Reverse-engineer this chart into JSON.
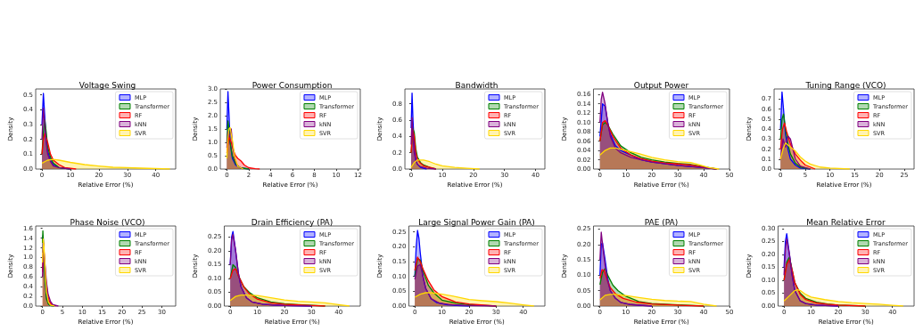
{
  "chart_data": [
    {
      "type": "area",
      "title": "Voltage Swing",
      "xlabel": "Relative Error (%)",
      "ylabel": "Density",
      "legend": "top right",
      "grid": false,
      "marker": "none",
      "xlim": [
        -2.2,
        47
      ],
      "xticks": [
        0,
        10,
        20,
        30,
        40
      ],
      "ylim": [
        0,
        0.54
      ],
      "yticks": [
        {
          "value": 0,
          "label": "0.0"
        },
        {
          "value": 0.1,
          "label": "0.1"
        },
        {
          "value": 0.2,
          "label": "0.2"
        },
        {
          "value": 0.3,
          "label": "0.3"
        },
        {
          "value": 0.4,
          "label": "0.4"
        },
        {
          "value": 0.5,
          "label": "0.5"
        }
      ],
      "series": [
        {
          "name": "MLP",
          "color": "#0000ff",
          "x": [
            0,
            0.5,
            1,
            1.5,
            2,
            3,
            4,
            6,
            10
          ],
          "values": [
            0.3,
            0.51,
            0.35,
            0.2,
            0.12,
            0.06,
            0.03,
            0.01,
            0
          ]
        },
        {
          "name": "Transformer",
          "color": "#008000",
          "x": [
            0,
            0.5,
            1,
            1.5,
            2,
            3,
            4,
            6,
            10
          ],
          "values": [
            0.1,
            0.25,
            0.33,
            0.25,
            0.15,
            0.08,
            0.04,
            0.01,
            0
          ]
        },
        {
          "name": "RF",
          "color": "#ff0000",
          "x": [
            0,
            0.5,
            1,
            2,
            3,
            4,
            6,
            8,
            12
          ],
          "values": [
            0.1,
            0.2,
            0.24,
            0.18,
            0.1,
            0.06,
            0.03,
            0.01,
            0
          ]
        },
        {
          "name": "kNN",
          "color": "#800080",
          "x": [
            0,
            0.5,
            1,
            1.5,
            2,
            3,
            4,
            6,
            10
          ],
          "values": [
            0.2,
            0.41,
            0.3,
            0.18,
            0.1,
            0.05,
            0.02,
            0.01,
            0
          ]
        },
        {
          "name": "SVR",
          "color": "#ffd700",
          "x": [
            0,
            2,
            4,
            6,
            10,
            15,
            20,
            25,
            30,
            35,
            40,
            45
          ],
          "values": [
            0.04,
            0.06,
            0.065,
            0.06,
            0.045,
            0.03,
            0.02,
            0.012,
            0.01,
            0.006,
            0.003,
            0
          ]
        }
      ]
    },
    {
      "type": "area",
      "title": "Power Consumption",
      "xlabel": "Relative Error (%)",
      "ylabel": "Density",
      "legend": "top right",
      "grid": false,
      "marker": "none",
      "xlim": [
        -0.6,
        12.2
      ],
      "xticks": [
        0,
        2,
        4,
        6,
        8,
        10,
        12
      ],
      "ylim": [
        0,
        3.0
      ],
      "yticks": [
        {
          "value": 0,
          "label": "0.0"
        },
        {
          "value": 0.5,
          "label": "0.5"
        },
        {
          "value": 1,
          "label": "1.0"
        },
        {
          "value": 1.5,
          "label": "1.5"
        },
        {
          "value": 2,
          "label": "2.0"
        },
        {
          "value": 2.5,
          "label": "2.5"
        },
        {
          "value": 3,
          "label": "3.0"
        }
      ],
      "series": [
        {
          "name": "MLP",
          "color": "#0000ff",
          "x": [
            0,
            0.1,
            0.2,
            0.3,
            0.5,
            0.8,
            1.2,
            2
          ],
          "values": [
            1.5,
            2.9,
            2.0,
            1.0,
            0.4,
            0.15,
            0.05,
            0
          ]
        },
        {
          "name": "Transformer",
          "color": "#008000",
          "x": [
            0,
            0.1,
            0.2,
            0.3,
            0.5,
            0.8,
            1.2,
            2
          ],
          "values": [
            1.0,
            1.8,
            1.5,
            1.0,
            0.5,
            0.2,
            0.05,
            0
          ]
        },
        {
          "name": "RF",
          "color": "#ff0000",
          "x": [
            0,
            0.2,
            0.4,
            0.6,
            0.8,
            1.0,
            1.3,
            1.6,
            2,
            2.6,
            3
          ],
          "values": [
            0.6,
            1.2,
            1.0,
            0.7,
            0.5,
            0.4,
            0.3,
            0.15,
            0.05,
            0.01,
            0
          ]
        },
        {
          "name": "kNN",
          "color": "#800080",
          "x": [
            0,
            0.1,
            0.2,
            0.3,
            0.4,
            0.5,
            0.7,
            1,
            1.5
          ],
          "values": [
            0.8,
            1.4,
            1.2,
            1.3,
            1.5,
            1.0,
            0.4,
            0.1,
            0
          ]
        },
        {
          "name": "SVR",
          "color": "#ffd700",
          "x": [
            0,
            0.1,
            0.2,
            0.3,
            0.4,
            0.5,
            0.7,
            1,
            1.5
          ],
          "values": [
            0.4,
            1.2,
            1.5,
            1.55,
            1.3,
            1.1,
            0.5,
            0.1,
            0
          ]
        }
      ]
    },
    {
      "type": "area",
      "title": "Bandwidth",
      "xlabel": "Relative Error (%)",
      "ylabel": "Density",
      "legend": "top right",
      "grid": false,
      "marker": "none",
      "xlim": [
        -2,
        43
      ],
      "xticks": [
        0,
        10,
        20,
        30,
        40
      ],
      "ylim": [
        0,
        0.98
      ],
      "yticks": [
        {
          "value": 0,
          "label": "0.0"
        },
        {
          "value": 0.2,
          "label": "0.2"
        },
        {
          "value": 0.4,
          "label": "0.4"
        },
        {
          "value": 0.6,
          "label": "0.6"
        },
        {
          "value": 0.8,
          "label": "0.8"
        }
      ],
      "series": [
        {
          "name": "MLP",
          "color": "#0000ff",
          "x": [
            0,
            0.3,
            0.6,
            1,
            1.5,
            2,
            3,
            5
          ],
          "values": [
            0.5,
            0.93,
            0.6,
            0.3,
            0.12,
            0.06,
            0.02,
            0
          ]
        },
        {
          "name": "Transformer",
          "color": "#008000",
          "x": [
            0,
            0.5,
            1,
            1.5,
            2,
            3,
            4,
            6,
            8
          ],
          "values": [
            0.2,
            0.5,
            0.45,
            0.25,
            0.15,
            0.08,
            0.05,
            0.02,
            0
          ]
        },
        {
          "name": "RF",
          "color": "#ff0000",
          "x": [
            0,
            0.5,
            1,
            1.5,
            2,
            3,
            4,
            6,
            8
          ],
          "values": [
            0.2,
            0.48,
            0.4,
            0.2,
            0.12,
            0.07,
            0.04,
            0.02,
            0
          ]
        },
        {
          "name": "kNN",
          "color": "#800080",
          "x": [
            0,
            0.3,
            0.6,
            1,
            1.5,
            2,
            3,
            5,
            8
          ],
          "values": [
            0.3,
            0.63,
            0.4,
            0.2,
            0.1,
            0.06,
            0.03,
            0.01,
            0
          ]
        },
        {
          "name": "SVR",
          "color": "#ffd700",
          "x": [
            0,
            1,
            2,
            4,
            6,
            8,
            10,
            14,
            18,
            22
          ],
          "values": [
            0.02,
            0.08,
            0.11,
            0.11,
            0.09,
            0.06,
            0.04,
            0.02,
            0.01,
            0
          ]
        }
      ]
    },
    {
      "type": "area",
      "title": "Output Power",
      "xlabel": "Relative Error (%)",
      "ylabel": "Density",
      "legend": "top right",
      "grid": false,
      "marker": "none",
      "xlim": [
        -2.5,
        50
      ],
      "xticks": [
        0,
        10,
        20,
        30,
        40,
        50
      ],
      "ylim": [
        0,
        0.172
      ],
      "yticks": [
        {
          "value": 0,
          "label": "0.00"
        },
        {
          "value": 0.02,
          "label": "0.02"
        },
        {
          "value": 0.04,
          "label": "0.04"
        },
        {
          "value": 0.06,
          "label": "0.06"
        },
        {
          "value": 0.08,
          "label": "0.08"
        },
        {
          "value": 0.1,
          "label": "0.10"
        },
        {
          "value": 0.12,
          "label": "0.12"
        },
        {
          "value": 0.14,
          "label": "0.14"
        },
        {
          "value": 0.16,
          "label": "0.16"
        }
      ],
      "series": [
        {
          "name": "MLP",
          "color": "#0000ff",
          "x": [
            0,
            1,
            2,
            3,
            4,
            6,
            8,
            12,
            16,
            20,
            30,
            40,
            45
          ],
          "values": [
            0.07,
            0.14,
            0.135,
            0.1,
            0.075,
            0.05,
            0.04,
            0.03,
            0.02,
            0.015,
            0.008,
            0.003,
            0
          ]
        },
        {
          "name": "Transformer",
          "color": "#008000",
          "x": [
            0,
            1,
            2,
            3,
            5,
            8,
            12,
            16,
            20,
            25,
            30,
            35,
            40,
            45
          ],
          "values": [
            0.06,
            0.095,
            0.1,
            0.095,
            0.075,
            0.05,
            0.035,
            0.025,
            0.02,
            0.015,
            0.012,
            0.01,
            0.005,
            0
          ]
        },
        {
          "name": "RF",
          "color": "#ff0000",
          "x": [
            0,
            1,
            2,
            3,
            5,
            8,
            12,
            16,
            20,
            25,
            30,
            35,
            40,
            45
          ],
          "values": [
            0.06,
            0.1,
            0.104,
            0.095,
            0.07,
            0.045,
            0.03,
            0.022,
            0.017,
            0.013,
            0.011,
            0.009,
            0.004,
            0
          ]
        },
        {
          "name": "kNN",
          "color": "#800080",
          "x": [
            0,
            0.5,
            1,
            2,
            3,
            4,
            6,
            8,
            12,
            16,
            20,
            30,
            40,
            45
          ],
          "values": [
            0.1,
            0.15,
            0.165,
            0.14,
            0.1,
            0.07,
            0.045,
            0.035,
            0.025,
            0.02,
            0.015,
            0.008,
            0.003,
            0
          ]
        },
        {
          "name": "SVR",
          "color": "#ffd700",
          "x": [
            0,
            2,
            4,
            6,
            10,
            15,
            20,
            25,
            30,
            35,
            38,
            42,
            46
          ],
          "values": [
            0.03,
            0.04,
            0.045,
            0.045,
            0.04,
            0.033,
            0.025,
            0.02,
            0.016,
            0.014,
            0.01,
            0.003,
            0
          ]
        }
      ]
    },
    {
      "type": "area",
      "title": "Tuning Range (VCO)",
      "xlabel": "Relative Error (%)",
      "ylabel": "Density",
      "legend": "top right",
      "grid": false,
      "marker": "none",
      "xlim": [
        -1.3,
        27
      ],
      "xticks": [
        0,
        5,
        10,
        15,
        20,
        25
      ],
      "ylim": [
        0,
        0.8
      ],
      "yticks": [
        {
          "value": 0,
          "label": "0.0"
        },
        {
          "value": 0.1,
          "label": "0.1"
        },
        {
          "value": 0.2,
          "label": "0.2"
        },
        {
          "value": 0.3,
          "label": "0.3"
        },
        {
          "value": 0.4,
          "label": "0.4"
        },
        {
          "value": 0.5,
          "label": "0.5"
        },
        {
          "value": 0.6,
          "label": "0.6"
        },
        {
          "value": 0.7,
          "label": "0.7"
        }
      ],
      "series": [
        {
          "name": "MLP",
          "color": "#0000ff",
          "x": [
            0,
            0.3,
            0.6,
            1,
            1.5,
            2,
            3,
            4,
            6
          ],
          "values": [
            0.4,
            0.77,
            0.6,
            0.35,
            0.2,
            0.1,
            0.04,
            0.01,
            0
          ]
        },
        {
          "name": "Transformer",
          "color": "#008000",
          "x": [
            0,
            0.3,
            0.6,
            1,
            1.5,
            2,
            3,
            4,
            6
          ],
          "values": [
            0.3,
            0.5,
            0.55,
            0.4,
            0.25,
            0.15,
            0.06,
            0.02,
            0
          ]
        },
        {
          "name": "RF",
          "color": "#ff0000",
          "x": [
            0,
            0.4,
            0.8,
            1.2,
            2,
            3,
            4,
            5,
            7
          ],
          "values": [
            0.2,
            0.4,
            0.46,
            0.38,
            0.25,
            0.15,
            0.09,
            0.04,
            0
          ]
        },
        {
          "name": "kNN",
          "color": "#800080",
          "x": [
            0,
            0.5,
            1,
            1.5,
            2,
            2.5,
            3,
            4,
            6
          ],
          "values": [
            0.1,
            0.3,
            0.22,
            0.33,
            0.3,
            0.2,
            0.1,
            0.03,
            0
          ]
        },
        {
          "name": "SVR",
          "color": "#ffd700",
          "x": [
            0,
            0.5,
            1,
            2,
            3,
            4,
            5,
            6,
            8,
            10,
            14
          ],
          "values": [
            0.1,
            0.2,
            0.26,
            0.22,
            0.18,
            0.12,
            0.08,
            0.05,
            0.02,
            0.01,
            0
          ]
        }
      ]
    },
    {
      "type": "area",
      "title": "Phase Noise (VCO)",
      "xlabel": "Relative Error (%)",
      "ylabel": "Density",
      "legend": "top right",
      "grid": false,
      "marker": "none",
      "xlim": [
        -1.7,
        33.5
      ],
      "xticks": [
        0,
        5,
        10,
        15,
        20,
        25,
        30
      ],
      "ylim": [
        0,
        1.65
      ],
      "yticks": [
        {
          "value": 0,
          "label": "0.0"
        },
        {
          "value": 0.2,
          "label": "0.2"
        },
        {
          "value": 0.4,
          "label": "0.4"
        },
        {
          "value": 0.6,
          "label": "0.6"
        },
        {
          "value": 0.8,
          "label": "0.8"
        },
        {
          "value": 1,
          "label": "1.0"
        },
        {
          "value": 1.2,
          "label": "1.2"
        },
        {
          "value": 1.4,
          "label": "1.4"
        },
        {
          "value": 1.6,
          "label": "1.6"
        }
      ],
      "series": [
        {
          "name": "MLP",
          "color": "#0000ff",
          "x": [
            0,
            0.15,
            0.4,
            0.7,
            1,
            1.5,
            2,
            3
          ],
          "values": [
            1.1,
            1.45,
            1.0,
            0.5,
            0.2,
            0.05,
            0.01,
            0
          ]
        },
        {
          "name": "Transformer",
          "color": "#008000",
          "x": [
            0,
            0.1,
            0.3,
            0.6,
            1,
            1.5,
            2,
            3
          ],
          "values": [
            1.3,
            1.55,
            1.2,
            0.6,
            0.15,
            0.04,
            0.01,
            0
          ]
        },
        {
          "name": "RF",
          "color": "#ff0000",
          "x": [
            0,
            0.25,
            0.5,
            0.8,
            1.2,
            1.6,
            2.2,
            3.5
          ],
          "values": [
            0.7,
            1.3,
            1.0,
            0.6,
            0.3,
            0.12,
            0.04,
            0
          ]
        },
        {
          "name": "kNN",
          "color": "#800080",
          "x": [
            0,
            0.3,
            0.6,
            1,
            1.4,
            2,
            2.6,
            4
          ],
          "values": [
            0.6,
            1.2,
            0.9,
            0.5,
            0.25,
            0.1,
            0.03,
            0
          ]
        },
        {
          "name": "SVR",
          "color": "#ffd700",
          "x": [
            0,
            0.2,
            0.4,
            0.7,
            1,
            1.5,
            2,
            3
          ],
          "values": [
            0.9,
            1.38,
            1.2,
            0.7,
            0.3,
            0.08,
            0.02,
            0
          ]
        }
      ]
    },
    {
      "type": "area",
      "title": "Drain Efficiency (PA)",
      "xlabel": "Relative Error (%)",
      "ylabel": "Density",
      "legend": "top right",
      "grid": false,
      "marker": "none",
      "xlim": [
        -2.2,
        48
      ],
      "xticks": [
        0,
        10,
        20,
        30,
        40
      ],
      "ylim": [
        0,
        0.29
      ],
      "yticks": [
        {
          "value": 0,
          "label": "0.00"
        },
        {
          "value": 0.05,
          "label": "0.05"
        },
        {
          "value": 0.1,
          "label": "0.10"
        },
        {
          "value": 0.15,
          "label": "0.15"
        },
        {
          "value": 0.2,
          "label": "0.20"
        },
        {
          "value": 0.25,
          "label": "0.25"
        }
      ],
      "series": [
        {
          "name": "MLP",
          "color": "#0000ff",
          "x": [
            0,
            0.5,
            1,
            2,
            3,
            4,
            6,
            8,
            12,
            16,
            20,
            30
          ],
          "values": [
            0.15,
            0.25,
            0.27,
            0.2,
            0.12,
            0.07,
            0.03,
            0.015,
            0.007,
            0.004,
            0.002,
            0
          ]
        },
        {
          "name": "Transformer",
          "color": "#008000",
          "x": [
            0,
            1,
            2,
            3,
            5,
            7,
            10,
            15,
            20,
            25,
            30,
            35
          ],
          "values": [
            0.1,
            0.15,
            0.14,
            0.11,
            0.07,
            0.05,
            0.03,
            0.015,
            0.008,
            0.005,
            0.003,
            0
          ]
        },
        {
          "name": "RF",
          "color": "#ff0000",
          "x": [
            0,
            1,
            2,
            3,
            5,
            7,
            10,
            15,
            20,
            25,
            30,
            35
          ],
          "values": [
            0.1,
            0.13,
            0.135,
            0.11,
            0.07,
            0.045,
            0.025,
            0.012,
            0.007,
            0.004,
            0.002,
            0
          ]
        },
        {
          "name": "kNN",
          "color": "#800080",
          "x": [
            0,
            0.5,
            1,
            2,
            3,
            4,
            6,
            8,
            12,
            16,
            20,
            30
          ],
          "values": [
            0.15,
            0.24,
            0.26,
            0.2,
            0.12,
            0.07,
            0.03,
            0.015,
            0.007,
            0.004,
            0.002,
            0
          ]
        },
        {
          "name": "SVR",
          "color": "#ffd700",
          "x": [
            0,
            2,
            4,
            6,
            10,
            15,
            20,
            25,
            30,
            35,
            40,
            44
          ],
          "values": [
            0.02,
            0.035,
            0.04,
            0.04,
            0.038,
            0.03,
            0.022,
            0.017,
            0.015,
            0.012,
            0.005,
            0
          ]
        }
      ]
    },
    {
      "type": "area",
      "title": "Large Signal Power Gain (PA)",
      "xlabel": "Relative Error (%)",
      "ylabel": "Density",
      "legend": "top right",
      "grid": false,
      "marker": "none",
      "xlim": [
        -2.2,
        48
      ],
      "xticks": [
        0,
        10,
        20,
        30,
        40
      ],
      "ylim": [
        0,
        0.27
      ],
      "yticks": [
        {
          "value": 0,
          "label": "0.00"
        },
        {
          "value": 0.05,
          "label": "0.05"
        },
        {
          "value": 0.1,
          "label": "0.10"
        },
        {
          "value": 0.15,
          "label": "0.15"
        },
        {
          "value": 0.2,
          "label": "0.20"
        },
        {
          "value": 0.25,
          "label": "0.25"
        }
      ],
      "series": [
        {
          "name": "MLP",
          "color": "#0000ff",
          "x": [
            0,
            0.5,
            1,
            1.5,
            2,
            3,
            4,
            6,
            8,
            12,
            20
          ],
          "values": [
            0.1,
            0.2,
            0.255,
            0.23,
            0.18,
            0.1,
            0.06,
            0.025,
            0.012,
            0.004,
            0
          ]
        },
        {
          "name": "Transformer",
          "color": "#008000",
          "x": [
            0,
            1,
            2,
            3,
            5,
            7,
            10,
            15,
            20,
            30
          ],
          "values": [
            0.1,
            0.16,
            0.155,
            0.12,
            0.07,
            0.045,
            0.02,
            0.01,
            0.005,
            0
          ]
        },
        {
          "name": "RF",
          "color": "#ff0000",
          "x": [
            0,
            1,
            2,
            3,
            5,
            7,
            10,
            15,
            20,
            30
          ],
          "values": [
            0.12,
            0.165,
            0.15,
            0.125,
            0.085,
            0.055,
            0.032,
            0.014,
            0.007,
            0
          ]
        },
        {
          "name": "kNN",
          "color": "#800080",
          "x": [
            0,
            1,
            2,
            3,
            4,
            6,
            9,
            14,
            20,
            30
          ],
          "values": [
            0.09,
            0.135,
            0.14,
            0.1,
            0.06,
            0.025,
            0.01,
            0.004,
            0.002,
            0
          ]
        },
        {
          "name": "SVR",
          "color": "#ffd700",
          "x": [
            0,
            2,
            4,
            6,
            10,
            15,
            20,
            25,
            30,
            35,
            40,
            44
          ],
          "values": [
            0.03,
            0.04,
            0.045,
            0.045,
            0.04,
            0.032,
            0.022,
            0.018,
            0.015,
            0.01,
            0.004,
            0
          ]
        }
      ]
    },
    {
      "type": "area",
      "title": "PAE (PA)",
      "xlabel": "Relative Error (%)",
      "ylabel": "Density",
      "legend": "top right",
      "grid": false,
      "marker": "none",
      "xlim": [
        -2.5,
        50
      ],
      "xticks": [
        0,
        10,
        20,
        30,
        40,
        50
      ],
      "ylim": [
        0,
        0.26
      ],
      "yticks": [
        {
          "value": 0,
          "label": "0.00"
        },
        {
          "value": 0.05,
          "label": "0.05"
        },
        {
          "value": 0.1,
          "label": "0.10"
        },
        {
          "value": 0.15,
          "label": "0.15"
        },
        {
          "value": 0.2,
          "label": "0.20"
        },
        {
          "value": 0.25,
          "label": "0.25"
        }
      ],
      "series": [
        {
          "name": "MLP",
          "color": "#0000ff",
          "x": [
            0,
            0.5,
            1,
            2,
            3,
            4,
            6,
            8,
            12,
            20
          ],
          "values": [
            0.1,
            0.2,
            0.205,
            0.15,
            0.09,
            0.05,
            0.025,
            0.012,
            0.005,
            0
          ]
        },
        {
          "name": "Transformer",
          "color": "#008000",
          "x": [
            0,
            1,
            2,
            3,
            5,
            7,
            10,
            15,
            20,
            30,
            40
          ],
          "values": [
            0.07,
            0.11,
            0.122,
            0.1,
            0.068,
            0.05,
            0.032,
            0.015,
            0.008,
            0.004,
            0
          ]
        },
        {
          "name": "RF",
          "color": "#ff0000",
          "x": [
            0,
            0.8,
            1.6,
            2.6,
            4,
            6,
            9,
            14,
            20,
            30,
            40
          ],
          "values": [
            0.09,
            0.118,
            0.115,
            0.09,
            0.06,
            0.04,
            0.025,
            0.013,
            0.007,
            0.003,
            0
          ]
        },
        {
          "name": "kNN",
          "color": "#800080",
          "x": [
            0,
            0.5,
            1,
            2,
            3,
            4,
            6,
            8,
            12,
            20
          ],
          "values": [
            0.15,
            0.24,
            0.2,
            0.13,
            0.08,
            0.05,
            0.025,
            0.012,
            0.005,
            0
          ]
        },
        {
          "name": "SVR",
          "color": "#ffd700",
          "x": [
            0,
            2,
            4,
            6,
            10,
            15,
            20,
            25,
            30,
            35,
            40,
            45
          ],
          "values": [
            0.02,
            0.035,
            0.038,
            0.038,
            0.034,
            0.028,
            0.022,
            0.018,
            0.016,
            0.015,
            0.006,
            0
          ]
        }
      ]
    },
    {
      "type": "area",
      "title": "Mean Relative Error",
      "xlabel": "Relative Error (%)",
      "ylabel": "Density",
      "legend": "top right",
      "grid": false,
      "marker": "none",
      "xlim": [
        -2.2,
        48
      ],
      "xticks": [
        0,
        10,
        20,
        30,
        40
      ],
      "ylim": [
        0,
        0.31
      ],
      "yticks": [
        {
          "value": 0,
          "label": "0.00"
        },
        {
          "value": 0.05,
          "label": "0.05"
        },
        {
          "value": 0.1,
          "label": "0.10"
        },
        {
          "value": 0.15,
          "label": "0.15"
        },
        {
          "value": 0.2,
          "label": "0.20"
        },
        {
          "value": 0.25,
          "label": "0.25"
        },
        {
          "value": 0.3,
          "label": "0.30"
        }
      ],
      "series": [
        {
          "name": "MLP",
          "color": "#0000ff",
          "x": [
            0,
            0.5,
            1,
            2,
            3,
            4,
            6,
            8,
            12,
            20
          ],
          "values": [
            0.15,
            0.25,
            0.28,
            0.2,
            0.12,
            0.06,
            0.02,
            0.01,
            0.004,
            0
          ]
        },
        {
          "name": "Transformer",
          "color": "#008000",
          "x": [
            0,
            1,
            2,
            3,
            4,
            6,
            8,
            12,
            16,
            20,
            30
          ],
          "values": [
            0.1,
            0.17,
            0.19,
            0.14,
            0.09,
            0.05,
            0.03,
            0.015,
            0.008,
            0.004,
            0
          ]
        },
        {
          "name": "RF",
          "color": "#ff0000",
          "x": [
            0,
            1,
            2,
            3,
            4,
            6,
            8,
            12,
            16,
            20,
            30
          ],
          "values": [
            0.1,
            0.16,
            0.18,
            0.14,
            0.09,
            0.045,
            0.025,
            0.012,
            0.007,
            0.004,
            0
          ]
        },
        {
          "name": "kNN",
          "color": "#800080",
          "x": [
            0,
            0.5,
            1,
            2,
            3,
            4,
            6,
            8,
            12,
            20
          ],
          "values": [
            0.12,
            0.22,
            0.26,
            0.2,
            0.12,
            0.06,
            0.02,
            0.01,
            0.004,
            0
          ]
        },
        {
          "name": "SVR",
          "color": "#ffd700",
          "x": [
            0,
            2,
            4,
            5,
            6,
            8,
            10,
            15,
            20,
            25,
            30,
            35,
            40,
            44
          ],
          "values": [
            0.02,
            0.04,
            0.06,
            0.063,
            0.06,
            0.045,
            0.035,
            0.025,
            0.018,
            0.013,
            0.01,
            0.007,
            0.003,
            0
          ]
        }
      ]
    }
  ]
}
